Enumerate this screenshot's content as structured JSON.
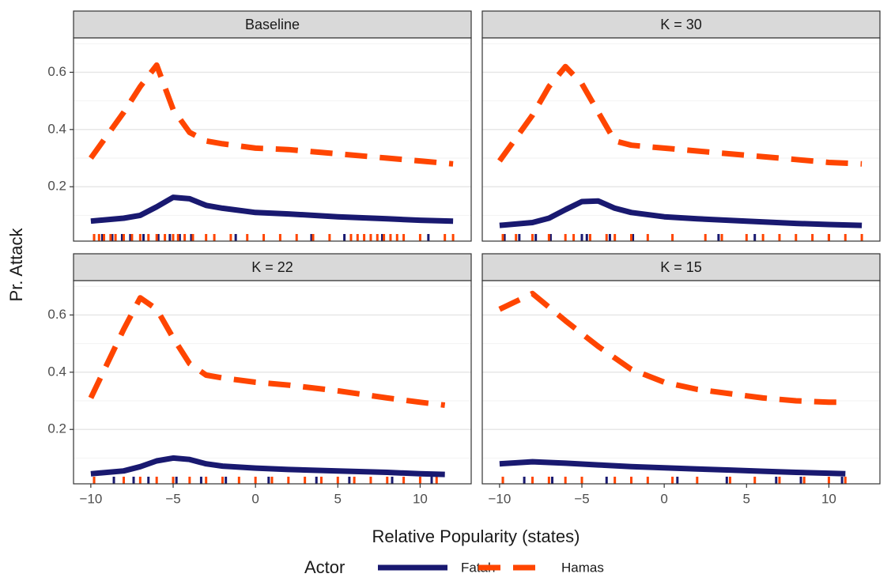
{
  "chart_data": {
    "type": "line",
    "x_label": "Relative Popularity (states)",
    "y_label": "Pr. Attack",
    "legend_title": "Actor",
    "series": [
      {
        "name": "Fatah",
        "color": "#191970",
        "dashed": false
      },
      {
        "name": "Hamas",
        "color": "#ff4500",
        "dashed": true
      }
    ],
    "xlim": [
      -11.05,
      13.1
    ],
    "ylim": [
      0.01,
      0.72
    ],
    "xticks": [
      {
        "value": -10,
        "label": "−10"
      },
      {
        "value": -5,
        "label": "−5"
      },
      0,
      5,
      10
    ],
    "yticks": [
      0.2,
      0.4,
      0.6
    ],
    "minor_yticks": [
      0.1,
      0.3,
      0.5,
      0.7
    ],
    "grid": true,
    "panels": [
      {
        "title": "Baseline",
        "x": [
          -10,
          -8,
          -7,
          -6,
          -5,
          -4,
          -3,
          -2,
          0,
          2,
          5,
          8,
          10,
          12
        ],
        "series": [
          {
            "values": [
              0.08,
              0.09,
              0.1,
              0.13,
              0.163,
              0.158,
              0.135,
              0.125,
              0.11,
              0.105,
              0.095,
              0.088,
              0.083,
              0.08
            ],
            "rug_x": [
              -9.8,
              -9.3,
              -8.7,
              -8.1,
              -7.6,
              -6.8,
              -5.9,
              -5.2,
              -4.6,
              -3.9,
              -1.2,
              3.4,
              5.4,
              7.7,
              10.5
            ]
          },
          {
            "values": [
              0.3,
              0.46,
              0.55,
              0.625,
              0.47,
              0.39,
              0.36,
              0.35,
              0.335,
              0.33,
              0.315,
              0.3,
              0.29,
              0.28
            ],
            "rug_x": [
              -9.8,
              -9.5,
              -9.2,
              -8.8,
              -8.5,
              -8,
              -7.5,
              -7,
              -6.5,
              -6,
              -5.5,
              -5,
              -4.7,
              -4.3,
              -3.8,
              -3,
              -2.5,
              -1.5,
              -0.5,
              0.5,
              1.5,
              2.5,
              3.5,
              4.5,
              5.8,
              6.2,
              6.6,
              7,
              7.4,
              7.8,
              8.2,
              8.6,
              9,
              10,
              11.5,
              12
            ]
          }
        ]
      },
      {
        "title": "K = 30",
        "x": [
          -10,
          -8,
          -7,
          -6,
          -5,
          -4,
          -3,
          -2,
          0,
          2,
          5,
          8,
          10,
          12
        ],
        "series": [
          {
            "values": [
              0.065,
              0.075,
              0.09,
              0.12,
              0.148,
              0.15,
              0.125,
              0.11,
              0.095,
              0.088,
              0.08,
              0.072,
              0.068,
              0.065
            ],
            "rug_x": [
              -9.7,
              -8.8,
              -7.8,
              -6.9,
              -5,
              -4.7,
              -3.3,
              -1.9,
              3.3,
              5.5,
              10
            ]
          },
          {
            "values": [
              0.29,
              0.45,
              0.55,
              0.62,
              0.56,
              0.46,
              0.36,
              0.345,
              0.335,
              0.325,
              0.31,
              0.295,
              0.285,
              0.28
            ],
            "rug_x": [
              -9.8,
              -9,
              -8,
              -7,
              -6,
              -5.5,
              -4.5,
              -3.5,
              -3,
              -2,
              -1,
              0.5,
              2.5,
              3.5,
              5,
              6,
              7,
              8,
              9,
              10,
              11,
              12
            ]
          }
        ]
      },
      {
        "title": "K = 22",
        "x": [
          -10,
          -8,
          -7,
          -6,
          -5,
          -4,
          -3,
          -2,
          0,
          2,
          5,
          8,
          10,
          11.5
        ],
        "series": [
          {
            "values": [
              0.045,
              0.055,
              0.07,
              0.09,
              0.1,
              0.095,
              0.08,
              0.072,
              0.065,
              0.06,
              0.055,
              0.05,
              0.045,
              0.043
            ],
            "rug_x": [
              -9.8,
              -8.6,
              -7.4,
              -6.5,
              -5,
              -4.8,
              -3.3,
              -1.8,
              0.8,
              3.7,
              5.7,
              8.3,
              10.7
            ]
          },
          {
            "values": [
              0.31,
              0.55,
              0.66,
              0.62,
              0.52,
              0.43,
              0.39,
              0.38,
              0.365,
              0.355,
              0.335,
              0.31,
              0.295,
              0.285
            ],
            "rug_x": [
              -9.8,
              -8,
              -7,
              -6,
              -5,
              -4,
              -3,
              -2,
              -1,
              0,
              1,
              2,
              3,
              4,
              5,
              6,
              7,
              8,
              9,
              10,
              11
            ]
          }
        ]
      },
      {
        "title": "K = 15",
        "x": [
          -10,
          -8,
          -6,
          -4,
          -2,
          0,
          2,
          4,
          6,
          8,
          10,
          11
        ],
        "series": [
          {
            "values": [
              0.08,
              0.087,
              0.082,
              0.076,
              0.07,
              0.066,
              0.062,
              0.058,
              0.054,
              0.05,
              0.047,
              0.045
            ],
            "rug_x": [
              -9.8,
              -8.5,
              -6.8,
              -5,
              -3.5,
              -2,
              0.8,
              3.8,
              6.8,
              8.3,
              10.8
            ]
          },
          {
            "values": [
              0.62,
              0.675,
              0.58,
              0.49,
              0.41,
              0.365,
              0.34,
              0.325,
              0.31,
              0.3,
              0.295,
              0.295
            ],
            "rug_x": [
              -9.8,
              -8,
              -7,
              -6,
              -5,
              -3,
              -2,
              -1,
              0.5,
              2,
              4,
              5.5,
              7,
              8.5,
              10,
              11
            ]
          }
        ]
      }
    ]
  }
}
